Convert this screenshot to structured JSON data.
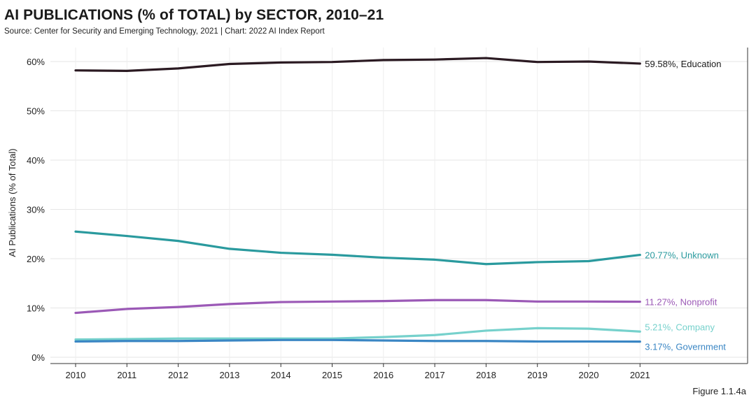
{
  "chart_data": {
    "type": "line",
    "title": "AI PUBLICATIONS (% of TOTAL) by SECTOR, 2010–21",
    "subtitle": "Source: Center for Security and Emerging Technology, 2021 | Chart: 2022 AI Index Report",
    "xlabel": "",
    "ylabel": "AI Publications (% of Total)",
    "ylim": [
      0,
      60
    ],
    "x": [
      "2010",
      "2011",
      "2012",
      "2013",
      "2014",
      "2015",
      "2016",
      "2017",
      "2018",
      "2019",
      "2020",
      "2021"
    ],
    "yticks": [
      {
        "value": 0,
        "label": "0%"
      },
      {
        "value": 10,
        "label": "10%"
      },
      {
        "value": 20,
        "label": "20%"
      },
      {
        "value": 30,
        "label": "30%"
      },
      {
        "value": 40,
        "label": "40%"
      },
      {
        "value": 50,
        "label": "50%"
      },
      {
        "value": 60,
        "label": "60%"
      }
    ],
    "grid": true,
    "series": [
      {
        "name": "Education",
        "color": "#2b1a22",
        "label": "59.58%, Education",
        "values": [
          58.2,
          58.1,
          58.6,
          59.5,
          59.8,
          59.9,
          60.3,
          60.4,
          60.7,
          59.9,
          60.0,
          59.58
        ]
      },
      {
        "name": "Unknown",
        "color": "#2a9a9e",
        "label": "20.77%, Unknown",
        "values": [
          25.5,
          24.6,
          23.6,
          22.0,
          21.2,
          20.8,
          20.2,
          19.8,
          18.9,
          19.3,
          19.5,
          20.77
        ]
      },
      {
        "name": "Nonprofit",
        "color": "#9b59b6",
        "label": "11.27%, Nonprofit",
        "values": [
          9.0,
          9.8,
          10.2,
          10.8,
          11.2,
          11.3,
          11.4,
          11.6,
          11.6,
          11.3,
          11.3,
          11.27
        ]
      },
      {
        "name": "Company",
        "color": "#76d1cc",
        "label": "5.21%, Company",
        "values": [
          3.6,
          3.7,
          3.8,
          3.8,
          3.8,
          3.8,
          4.1,
          4.5,
          5.4,
          5.9,
          5.8,
          5.21
        ]
      },
      {
        "name": "Government",
        "color": "#3a86c4",
        "label": "3.17%, Government",
        "values": [
          3.2,
          3.3,
          3.3,
          3.4,
          3.5,
          3.5,
          3.4,
          3.3,
          3.3,
          3.2,
          3.2,
          3.17
        ]
      }
    ]
  },
  "figure_label": "Figure 1.1.4a"
}
